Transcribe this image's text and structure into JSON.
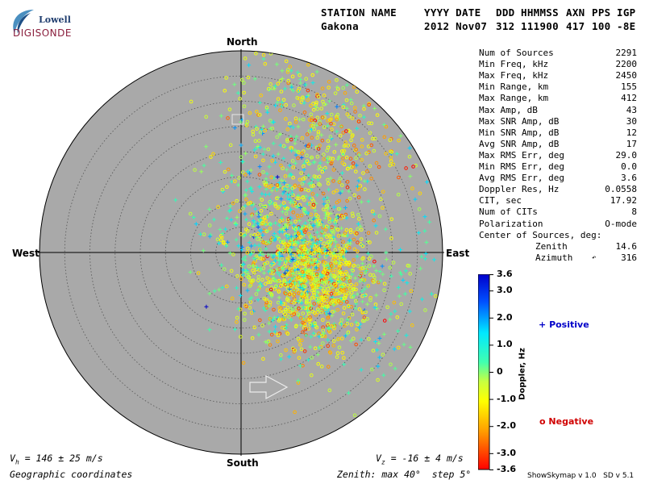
{
  "logo": {
    "line1": "Lowell",
    "line2": "DIGISONDE"
  },
  "header": {
    "row1": [
      "STATION NAME",
      "YYYY DATE",
      "DDD",
      "HHMMSS",
      "AXN",
      "PPS",
      "IGP"
    ],
    "row2": [
      "Gakona",
      "2012 Nov07",
      "312",
      "111900",
      "417",
      "100",
      "-8E"
    ]
  },
  "stats": [
    {
      "label": "Num of Sources",
      "value": "2291"
    },
    {
      "label": "Min Freq, kHz",
      "value": "2200"
    },
    {
      "label": "Max Freq, kHz",
      "value": "2450"
    },
    {
      "label": "Min Range, km",
      "value": "155"
    },
    {
      "label": "Max Range, km",
      "value": "412"
    },
    {
      "label": "Max Amp, dB",
      "value": "43"
    },
    {
      "label": "Max SNR Amp, dB",
      "value": "30"
    },
    {
      "label": "Min SNR Amp, dB",
      "value": "12"
    },
    {
      "label": "Avg SNR Amp, dB",
      "value": "17"
    },
    {
      "label": "Max RMS Err, deg",
      "value": "29.0"
    },
    {
      "label": "Min RMS Err, deg",
      "value": "0.0"
    },
    {
      "label": "Avg RMS Err, deg",
      "value": "3.6"
    },
    {
      "label": "Doppler Res, Hz",
      "value": "0.0558"
    },
    {
      "label": "CIT, sec",
      "value": "17.92"
    },
    {
      "label": "Num of CITs",
      "value": "8"
    },
    {
      "label": "Polarization",
      "value": "O-mode"
    },
    {
      "label": "Center of Sources, deg:",
      "value": ""
    }
  ],
  "center": {
    "zenith_label": "Zenith",
    "zenith_value": "14.6",
    "azimuth_label": "Azimuth",
    "azimuth_value": "316"
  },
  "compass": {
    "north": "North",
    "south": "South",
    "east": "East",
    "west": "West"
  },
  "colorbar": {
    "label": "Doppler, Hz",
    "min": -3.6,
    "max": 3.6,
    "ticks": [
      "3.6",
      "3.0",
      "2.0",
      "1.0",
      "0",
      "-1.0",
      "-2.0",
      "-3.0",
      "-3.6"
    ]
  },
  "legend": {
    "positive": {
      "symbol": "+",
      "label": "Positive",
      "color": "#0000c8"
    },
    "negative": {
      "symbol": "o",
      "label": "Negative",
      "color": "#d00000"
    }
  },
  "footer": {
    "vh_value": "= 146 ± 25 m/s",
    "vz_value": "= -16 ± 4 m/s",
    "coords": "Geographic coordinates",
    "zenith_info": "Zenith: max 40°  step 5°",
    "version": "ShowSkymap v 1.0   SD v 5.1"
  },
  "chart_data": {
    "type": "scatter",
    "coordinates": "polar skymap (zenith angle, azimuth)",
    "zenith_max_deg": 40,
    "zenith_step_deg": 5,
    "color_scale": {
      "quantity": "Doppler, Hz",
      "min": -3.6,
      "max": 3.6
    },
    "center_of_sources": {
      "zenith_deg": 14.6,
      "azimuth_deg": 316
    },
    "source_count": 2291,
    "clusters": [
      {
        "zenith_deg": 15,
        "azimuth_deg": 110,
        "n": 1100,
        "spread_deg": 6,
        "doppler_mean": -0.9
      },
      {
        "zenith_deg": 9,
        "azimuth_deg": 60,
        "n": 480,
        "spread_deg": 7,
        "doppler_mean": 0.4
      },
      {
        "zenith_deg": 28,
        "azimuth_deg": 25,
        "n": 380,
        "spread_deg": 8,
        "doppler_mean": -0.3
      },
      {
        "zenith_deg": 30,
        "azimuth_deg": 50,
        "n": 140,
        "spread_deg": 6,
        "doppler_mean": -1.2
      },
      {
        "zenith_deg": 30,
        "azimuth_deg": 110,
        "n": 191,
        "spread_deg": 12,
        "doppler_mean": 0.2
      }
    ]
  }
}
